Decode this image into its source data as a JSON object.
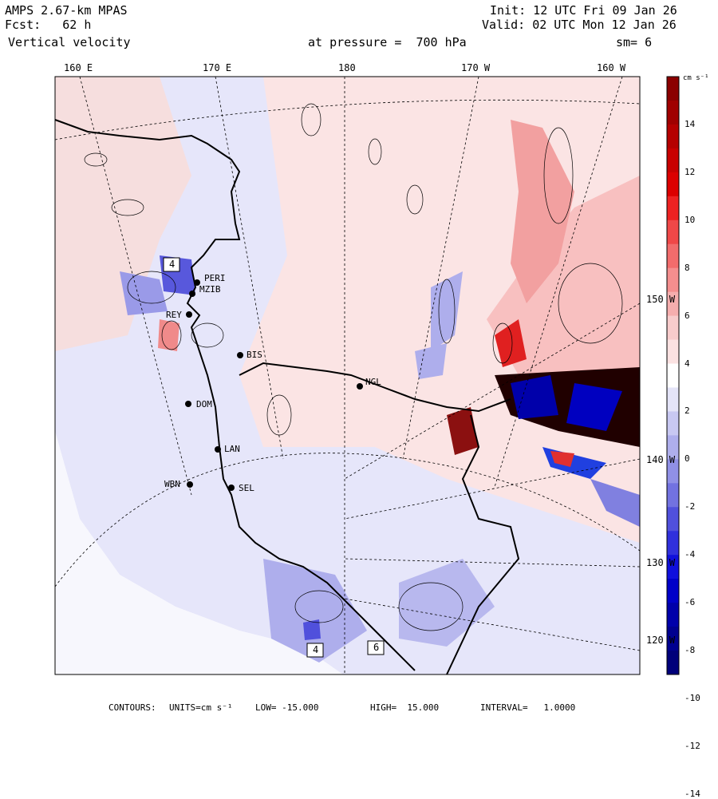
{
  "header": {
    "model": "AMPS 2.67-km MPAS",
    "forecast": "Fcst:   62 h",
    "field": "Vertical velocity",
    "init": "Init: 12 UTC Fri 09 Jan 26",
    "valid": "Valid: 02 UTC Mon 12 Jan 26",
    "pressure_level": "at pressure =  700 hPa",
    "smoothing": "sm= 6"
  },
  "longitude_labels": [
    "160 E",
    "170 E",
    "180",
    "170 W",
    "160 W"
  ],
  "latitude_labels": [
    "150 W",
    "140 W",
    "130 W",
    "120 W"
  ],
  "stations": [
    "PERI",
    "MZIB",
    "REY",
    "BIS",
    "NGL",
    "DOM",
    "LAN",
    "WBN",
    "SEL"
  ],
  "box_labels": [
    "4",
    "4",
    "6"
  ],
  "colorbar": {
    "units": "cm s⁻¹",
    "ticks": [
      "14",
      "12",
      "10",
      "8",
      "6",
      "4",
      "2",
      "0",
      "-2",
      "-4",
      "-6",
      "-8",
      "-10",
      "-12",
      "-14"
    ],
    "colors": [
      "#8b0000",
      "#a00000",
      "#b50000",
      "#c80000",
      "#dc0000",
      "#ee2222",
      "#f04848",
      "#f26c6c",
      "#f48e8e",
      "#f6aeae",
      "#f8cccc",
      "#fbe2e2",
      "#ffffff",
      "#e4e4f8",
      "#c8c8f2",
      "#aeaeec",
      "#9090e6",
      "#7272e0",
      "#5050dc",
      "#3030dc",
      "#1010dc",
      "#0000c8",
      "#0000aa",
      "#000090",
      "#00007a"
    ]
  },
  "footer": {
    "contours_label": "CONTOURS:",
    "units": "UNITS=cm s⁻¹",
    "low": "LOW= -15.000",
    "high": "HIGH=  15.000",
    "interval": "INTERVAL=   1.0000"
  }
}
